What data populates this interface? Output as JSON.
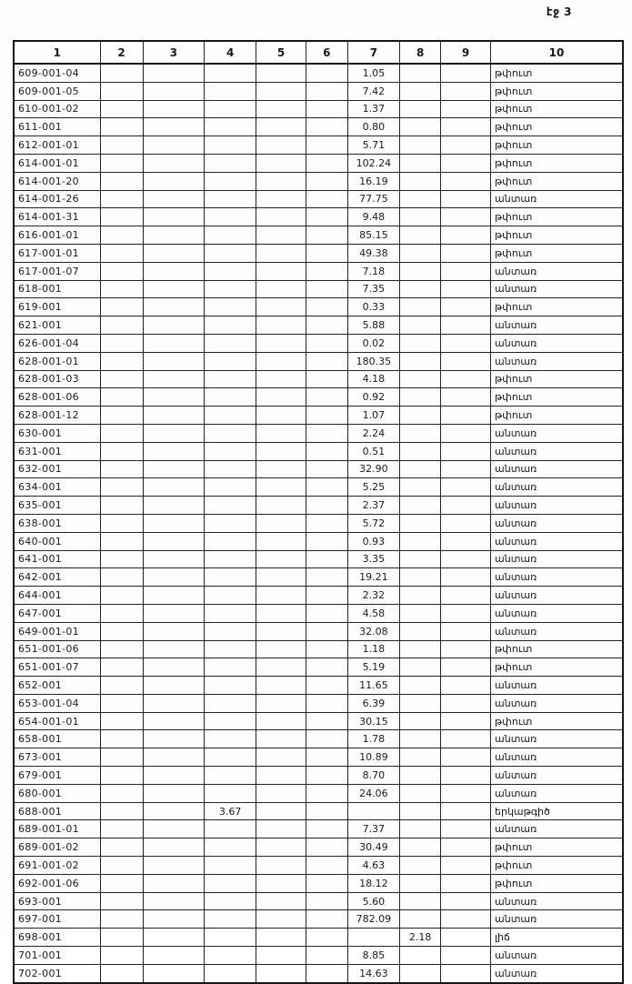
{
  "page": {
    "corner_label": "էջ 3"
  },
  "colors": {
    "ink": "#1a1a1a",
    "paper": "#fdfdfc"
  },
  "table": {
    "headers": [
      "1",
      "2",
      "3",
      "4",
      "5",
      "6",
      "7",
      "8",
      "9",
      "10"
    ],
    "rows": [
      {
        "c1": "609-001-04",
        "c4": "",
        "c7": "1.05",
        "c8": "",
        "c10": "թփուտ"
      },
      {
        "c1": "609-001-05",
        "c4": "",
        "c7": "7.42",
        "c8": "",
        "c10": "թփուտ"
      },
      {
        "c1": "610-001-02",
        "c4": "",
        "c7": "1.37",
        "c8": "",
        "c10": "թփուտ"
      },
      {
        "c1": "611-001",
        "c4": "",
        "c7": "0.80",
        "c8": "",
        "c10": "թփուտ"
      },
      {
        "c1": "612-001-01",
        "c4": "",
        "c7": "5.71",
        "c8": "",
        "c10": "թփուտ"
      },
      {
        "c1": "614-001-01",
        "c4": "",
        "c7": "102.24",
        "c8": "",
        "c10": "թփուտ"
      },
      {
        "c1": "614-001-20",
        "c4": "",
        "c7": "16.19",
        "c8": "",
        "c10": "թփուտ"
      },
      {
        "c1": "614-001-26",
        "c4": "",
        "c7": "77.75",
        "c8": "",
        "c10": "անտառ"
      },
      {
        "c1": "614-001-31",
        "c4": "",
        "c7": "9.48",
        "c8": "",
        "c10": "թփուտ"
      },
      {
        "c1": "616-001-01",
        "c4": "",
        "c7": "85.15",
        "c8": "",
        "c10": "թփուտ"
      },
      {
        "c1": "617-001-01",
        "c4": "",
        "c7": "49.38",
        "c8": "",
        "c10": "թփուտ"
      },
      {
        "c1": "617-001-07",
        "c4": "",
        "c7": "7.18",
        "c8": "",
        "c10": "անտառ"
      },
      {
        "c1": "618-001",
        "c4": "",
        "c7": "7.35",
        "c8": "",
        "c10": "անտառ"
      },
      {
        "c1": "619-001",
        "c4": "",
        "c7": "0.33",
        "c8": "",
        "c10": "թփուտ"
      },
      {
        "c1": "621-001",
        "c4": "",
        "c7": "5.88",
        "c8": "",
        "c10": "անտառ"
      },
      {
        "c1": "626-001-04",
        "c4": "",
        "c7": "0.02",
        "c8": "",
        "c10": "անտառ"
      },
      {
        "c1": "628-001-01",
        "c4": "",
        "c7": "180.35",
        "c8": "",
        "c10": "անտառ"
      },
      {
        "c1": "628-001-03",
        "c4": "",
        "c7": "4.18",
        "c8": "",
        "c10": "թփուտ"
      },
      {
        "c1": "628-001-06",
        "c4": "",
        "c7": "0.92",
        "c8": "",
        "c10": "թփուտ"
      },
      {
        "c1": "628-001-12",
        "c4": "",
        "c7": "1.07",
        "c8": "",
        "c10": "թփուտ"
      },
      {
        "c1": "630-001",
        "c4": "",
        "c7": "2.24",
        "c8": "",
        "c10": "անտառ"
      },
      {
        "c1": "631-001",
        "c4": "",
        "c7": "0.51",
        "c8": "",
        "c10": "անտառ"
      },
      {
        "c1": "632-001",
        "c4": "",
        "c7": "32.90",
        "c8": "",
        "c10": "անտառ"
      },
      {
        "c1": "634-001",
        "c4": "",
        "c7": "5.25",
        "c8": "",
        "c10": "անտառ"
      },
      {
        "c1": "635-001",
        "c4": "",
        "c7": "2.37",
        "c8": "",
        "c10": "անտառ"
      },
      {
        "c1": "638-001",
        "c4": "",
        "c7": "5.72",
        "c8": "",
        "c10": "անտառ"
      },
      {
        "c1": "640-001",
        "c4": "",
        "c7": "0.93",
        "c8": "",
        "c10": "անտառ"
      },
      {
        "c1": "641-001",
        "c4": "",
        "c7": "3.35",
        "c8": "",
        "c10": "անտառ"
      },
      {
        "c1": "642-001",
        "c4": "",
        "c7": "19.21",
        "c8": "",
        "c10": "անտառ"
      },
      {
        "c1": "644-001",
        "c4": "",
        "c7": "2.32",
        "c8": "",
        "c10": "անտառ"
      },
      {
        "c1": "647-001",
        "c4": "",
        "c7": "4.58",
        "c8": "",
        "c10": "անտառ"
      },
      {
        "c1": "649-001-01",
        "c4": "",
        "c7": "32.08",
        "c8": "",
        "c10": "անտառ"
      },
      {
        "c1": "651-001-06",
        "c4": "",
        "c7": "1.18",
        "c8": "",
        "c10": "թփուտ"
      },
      {
        "c1": "651-001-07",
        "c4": "",
        "c7": "5.19",
        "c8": "",
        "c10": "թփուտ"
      },
      {
        "c1": "652-001",
        "c4": "",
        "c7": "11.65",
        "c8": "",
        "c10": "անտառ"
      },
      {
        "c1": "653-001-04",
        "c4": "",
        "c7": "6.39",
        "c8": "",
        "c10": "անտառ"
      },
      {
        "c1": "654-001-01",
        "c4": "",
        "c7": "30.15",
        "c8": "",
        "c10": "թփուտ"
      },
      {
        "c1": "658-001",
        "c4": "",
        "c7": "1.78",
        "c8": "",
        "c10": "անտառ"
      },
      {
        "c1": "673-001",
        "c4": "",
        "c7": "10.89",
        "c8": "",
        "c10": "անտառ"
      },
      {
        "c1": "679-001",
        "c4": "",
        "c7": "8.70",
        "c8": "",
        "c10": "անտառ"
      },
      {
        "c1": "680-001",
        "c4": "",
        "c7": "24.06",
        "c8": "",
        "c10": "անտառ"
      },
      {
        "c1": "688-001",
        "c4": "3.67",
        "c7": "",
        "c8": "",
        "c10": "երկաթգիծ"
      },
      {
        "c1": "689-001-01",
        "c4": "",
        "c7": "7.37",
        "c8": "",
        "c10": "անտառ"
      },
      {
        "c1": "689-001-02",
        "c4": "",
        "c7": "30.49",
        "c8": "",
        "c10": "թփուտ"
      },
      {
        "c1": "691-001-02",
        "c4": "",
        "c7": "4.63",
        "c8": "",
        "c10": "թփուտ"
      },
      {
        "c1": "692-001-06",
        "c4": "",
        "c7": "18.12",
        "c8": "",
        "c10": "թփուտ"
      },
      {
        "c1": "693-001",
        "c4": "",
        "c7": "5.60",
        "c8": "",
        "c10": "անտառ"
      },
      {
        "c1": "697-001",
        "c4": "",
        "c7": "782.09",
        "c8": "",
        "c10": "անտառ"
      },
      {
        "c1": "698-001",
        "c4": "",
        "c7": "",
        "c8": "2.18",
        "c10": "լիճ"
      },
      {
        "c1": "701-001",
        "c4": "",
        "c7": "8.85",
        "c8": "",
        "c10": "անտառ"
      },
      {
        "c1": "702-001",
        "c4": "",
        "c7": "14.63",
        "c8": "",
        "c10": "անտառ"
      }
    ]
  }
}
